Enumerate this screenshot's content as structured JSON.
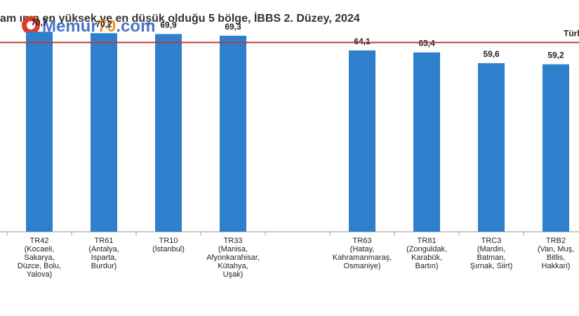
{
  "chart_data": {
    "type": "bar",
    "title": "am ının en yüksek ve en düşük olduğu 5 bölge, İBBS 2. Düzey, 2024",
    "watermark": [
      "Memur",
      "70",
      ".com"
    ],
    "categories": [
      [
        "TR42",
        "(Kocaeli,",
        "Sakarya,",
        "Düzce, Bolu,",
        "Yalova)"
      ],
      [
        "TR61",
        "(Antalya,",
        "Isparta,",
        "Burdur)"
      ],
      [
        "TR10",
        "(İstanbul)"
      ],
      [
        "TR33",
        "(Manisa,",
        "Afyonkarahisar,",
        "Kütahya,",
        "Uşak)"
      ],
      null,
      [
        "TR63",
        "(Hatay,",
        "Kahramanmaraş,",
        "Osmaniye)"
      ],
      [
        "TR81",
        "(Zonguldak,",
        "Karabük,",
        "Bartın)"
      ],
      [
        "TRC3",
        "(Mardin,",
        "Batman,",
        "Şırnak, Siirt)"
      ],
      [
        "TRB2",
        "(Van, Muş,",
        "Bitlis,",
        "Hakkari)"
      ]
    ],
    "values": [
      70.7,
      70.2,
      69.9,
      69.3,
      null,
      64.1,
      63.4,
      59.6,
      59.2
    ],
    "value_labels": [
      "70,7",
      "70,2",
      "69,9",
      "69,3",
      null,
      "64,1",
      "63,4",
      "59,6",
      "59,2"
    ],
    "color": "#2e7fcc",
    "ylim": [
      0,
      72
    ],
    "reference_line": {
      "value": 66.9,
      "label": "Türk",
      "color": "#c0393b"
    }
  }
}
